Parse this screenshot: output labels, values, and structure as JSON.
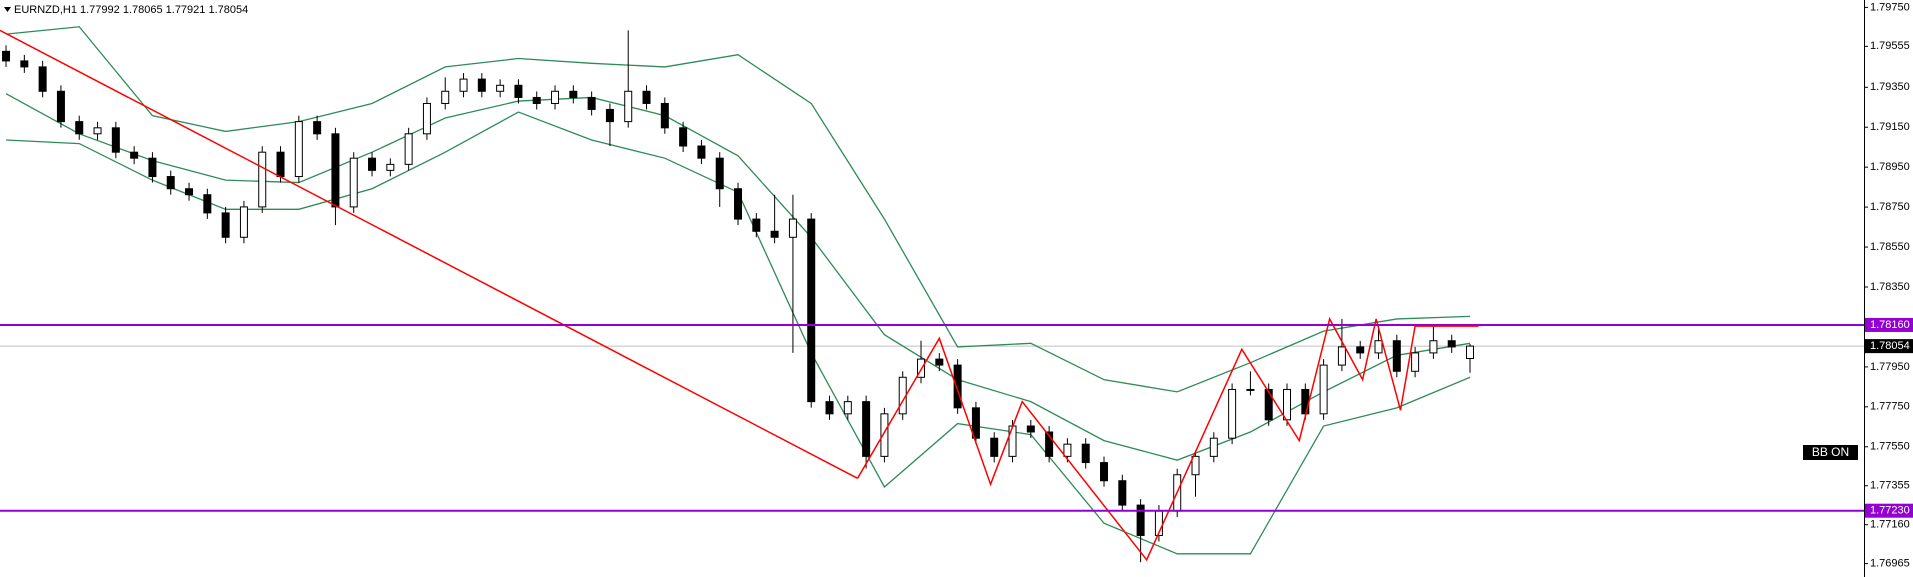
{
  "chart_data": {
    "type": "candlestick",
    "title": "EURNZD,H1  1.77992 1.78065 1.77921 1.78054",
    "button_label": "BB ON",
    "xlim": [
      -0.33,
      101.53
    ],
    "ylim": [
      1.76898,
      1.79787
    ],
    "yticks": [
      {
        "value": 1.7975,
        "label": "1.79750"
      },
      1.79555,
      {
        "value": 1.7935,
        "label": "1.79350"
      },
      {
        "value": 1.7915,
        "label": "1.79150"
      },
      {
        "value": 1.7895,
        "label": "1.78950"
      },
      {
        "value": 1.7875,
        "label": "1.78750"
      },
      {
        "value": 1.7855,
        "label": "1.78550"
      },
      {
        "value": 1.7835,
        "label": "1.78350"
      },
      {
        "value": 1.7795,
        "label": "1.77950"
      },
      {
        "value": 1.7775,
        "label": "1.77750"
      },
      {
        "value": 1.7755,
        "label": "1.77550"
      },
      1.77355,
      {
        "value": 1.7716,
        "label": "1.77160"
      },
      1.76965
    ],
    "color_up": "#ffffff",
    "color_down": "#000000",
    "candles": {
      "open": [
        1.7953,
        1.79482,
        1.79452,
        1.7933,
        1.79178,
        1.79117,
        1.79147,
        1.79025,
        1.78995,
        1.78903,
        1.78842,
        1.78812,
        1.78721,
        1.78599,
        1.78751,
        1.79025,
        1.78903,
        1.79178,
        1.79117,
        1.78751,
        1.78995,
        1.78934,
        1.78964,
        1.79117,
        1.79269,
        1.7933,
        1.79391,
        1.7933,
        1.7936,
        1.79299,
        1.79269,
        1.7933,
        1.79299,
        1.79239,
        1.79178,
        1.7933,
        1.79269,
        1.79147,
        1.79056,
        1.78995,
        1.78842,
        1.7869,
        1.78629,
        1.78599,
        1.7869,
        1.77776,
        1.77715,
        1.77776,
        1.77502,
        1.77715,
        1.77898,
        1.77989,
        1.77959,
        1.77745,
        1.77593,
        1.77502,
        1.77654,
        1.77624,
        1.77502,
        1.77563,
        1.77471,
        1.7738,
        1.77258,
        1.77106,
        1.77228,
        1.7741,
        1.77502,
        1.77593,
        1.77837,
        1.77837,
        1.77685,
        1.77837,
        1.77715,
        1.77959,
        1.7805,
        1.7802,
        1.78081,
        1.77928,
        1.7802,
        1.78081,
        1.77992
      ],
      "high": [
        1.7956,
        1.79512,
        1.79482,
        1.7936,
        1.79208,
        1.79177,
        1.79177,
        1.79055,
        1.79025,
        1.78933,
        1.78872,
        1.78842,
        1.78751,
        1.78781,
        1.79055,
        1.79055,
        1.79208,
        1.79208,
        1.79147,
        1.79025,
        1.79025,
        1.78994,
        1.79147,
        1.79299,
        1.794,
        1.79421,
        1.79421,
        1.7939,
        1.7939,
        1.79329,
        1.7936,
        1.7936,
        1.79329,
        1.79269,
        1.79635,
        1.7936,
        1.79299,
        1.79177,
        1.79086,
        1.79025,
        1.78872,
        1.7872,
        1.78812,
        1.78812,
        1.7872,
        1.77806,
        1.77806,
        1.77806,
        1.77745,
        1.77928,
        1.78081,
        1.78019,
        1.77989,
        1.77775,
        1.77623,
        1.77684,
        1.77684,
        1.77654,
        1.77593,
        1.77593,
        1.77501,
        1.7741,
        1.77288,
        1.77258,
        1.7744,
        1.77532,
        1.77623,
        1.77867,
        1.77928,
        1.77867,
        1.77867,
        1.77867,
        1.77989,
        1.7819,
        1.7808,
        1.7816,
        1.78111,
        1.7805,
        1.78154,
        1.78111,
        1.78065
      ],
      "low": [
        1.79452,
        1.79422,
        1.793,
        1.79148,
        1.79087,
        1.79087,
        1.78995,
        1.78965,
        1.78873,
        1.78812,
        1.78782,
        1.78691,
        1.78569,
        1.78569,
        1.78721,
        1.78873,
        1.78873,
        1.79087,
        1.7866,
        1.78721,
        1.78904,
        1.78904,
        1.78934,
        1.79087,
        1.79239,
        1.793,
        1.793,
        1.793,
        1.79269,
        1.79239,
        1.79239,
        1.79269,
        1.79209,
        1.79056,
        1.79148,
        1.79239,
        1.79117,
        1.79026,
        1.78965,
        1.78751,
        1.7866,
        1.78599,
        1.78569,
        1.7802,
        1.77746,
        1.77685,
        1.77685,
        1.77441,
        1.77472,
        1.77685,
        1.77868,
        1.77929,
        1.77715,
        1.77563,
        1.77472,
        1.77472,
        1.77594,
        1.77472,
        1.77472,
        1.77441,
        1.7735,
        1.77228,
        1.76972,
        1.77076,
        1.77198,
        1.773,
        1.77472,
        1.77563,
        1.77807,
        1.77655,
        1.77655,
        1.77685,
        1.77685,
        1.77929,
        1.7799,
        1.7799,
        1.77898,
        1.77898,
        1.7799,
        1.7802,
        1.77921
      ],
      "close": [
        1.79482,
        1.79452,
        1.7933,
        1.79178,
        1.79117,
        1.79147,
        1.79025,
        1.78995,
        1.78903,
        1.78842,
        1.78812,
        1.78721,
        1.78599,
        1.78751,
        1.79025,
        1.78903,
        1.79178,
        1.79117,
        1.78751,
        1.78995,
        1.78934,
        1.78964,
        1.79117,
        1.79269,
        1.7933,
        1.79391,
        1.7933,
        1.7936,
        1.79299,
        1.79269,
        1.7933,
        1.79299,
        1.79239,
        1.79178,
        1.7933,
        1.79269,
        1.79147,
        1.79056,
        1.78995,
        1.78842,
        1.7869,
        1.78629,
        1.78599,
        1.7869,
        1.77776,
        1.77715,
        1.77776,
        1.77502,
        1.77715,
        1.77898,
        1.77989,
        1.77959,
        1.77745,
        1.77593,
        1.77502,
        1.77654,
        1.77624,
        1.77502,
        1.77563,
        1.77471,
        1.7738,
        1.77258,
        1.77106,
        1.77228,
        1.7741,
        1.77502,
        1.77593,
        1.77837,
        1.77837,
        1.77685,
        1.77837,
        1.77715,
        1.77959,
        1.7805,
        1.7802,
        1.78081,
        1.77928,
        1.7802,
        1.78081,
        1.7805,
        1.78054
      ]
    },
    "bands": {
      "color": "#2e8b57",
      "x": [
        0,
        4,
        8,
        12,
        16,
        20,
        24,
        28,
        32,
        36,
        40,
        44,
        48,
        52,
        56,
        60,
        64,
        68,
        72,
        76,
        80
      ],
      "upper": [
        1.79616,
        1.79653,
        1.79208,
        1.79129,
        1.79178,
        1.79269,
        1.79452,
        1.79494,
        1.7947,
        1.79452,
        1.79513,
        1.79269,
        1.7869,
        1.7805,
        1.78068,
        1.77886,
        1.77825,
        1.77971,
        1.78129,
        1.7819,
        1.78203
      ],
      "middle": [
        1.79318,
        1.79117,
        1.78983,
        1.78885,
        1.78873,
        1.79025,
        1.79196,
        1.79281,
        1.79299,
        1.79208,
        1.79007,
        1.78599,
        1.78111,
        1.77886,
        1.77776,
        1.77581,
        1.77483,
        1.77624,
        1.77825,
        1.78008,
        1.78068
      ],
      "lower": [
        1.79086,
        1.79068,
        1.78885,
        1.78739,
        1.78739,
        1.78842,
        1.79025,
        1.79226,
        1.79086,
        1.78995,
        1.78824,
        1.7802,
        1.77349,
        1.77666,
        1.77611,
        1.77167,
        1.77014,
        1.77014,
        1.77654,
        1.77745,
        1.77898
      ]
    },
    "trendlines": [
      {
        "color": "#ff0000",
        "x": [
          -0.33,
          46.53
        ],
        "values": [
          1.79635,
          1.77392
        ]
      },
      {
        "color": "#ff0000",
        "x": [
          46.53,
          51,
          53.8,
          55.53,
          62.33,
          67.53,
          70.67,
          72.33,
          74.13,
          74.87,
          76.2,
          77,
          80.47
        ],
        "values": [
          1.77392,
          1.78093,
          1.77362,
          1.77776,
          1.76984,
          1.78038,
          1.77581,
          1.7819,
          1.77886,
          1.7819,
          1.77733,
          1.78154,
          1.78154
        ]
      }
    ],
    "hlines": [
      {
        "value": 1.7816,
        "label": "1.78160",
        "color": "#9400d3"
      },
      {
        "value": 1.7723,
        "label": "1.77230",
        "color": "#9400d3"
      }
    ],
    "last_price": {
      "value": 1.78054,
      "label": "1.78054",
      "color": "#c0c0c0"
    }
  }
}
